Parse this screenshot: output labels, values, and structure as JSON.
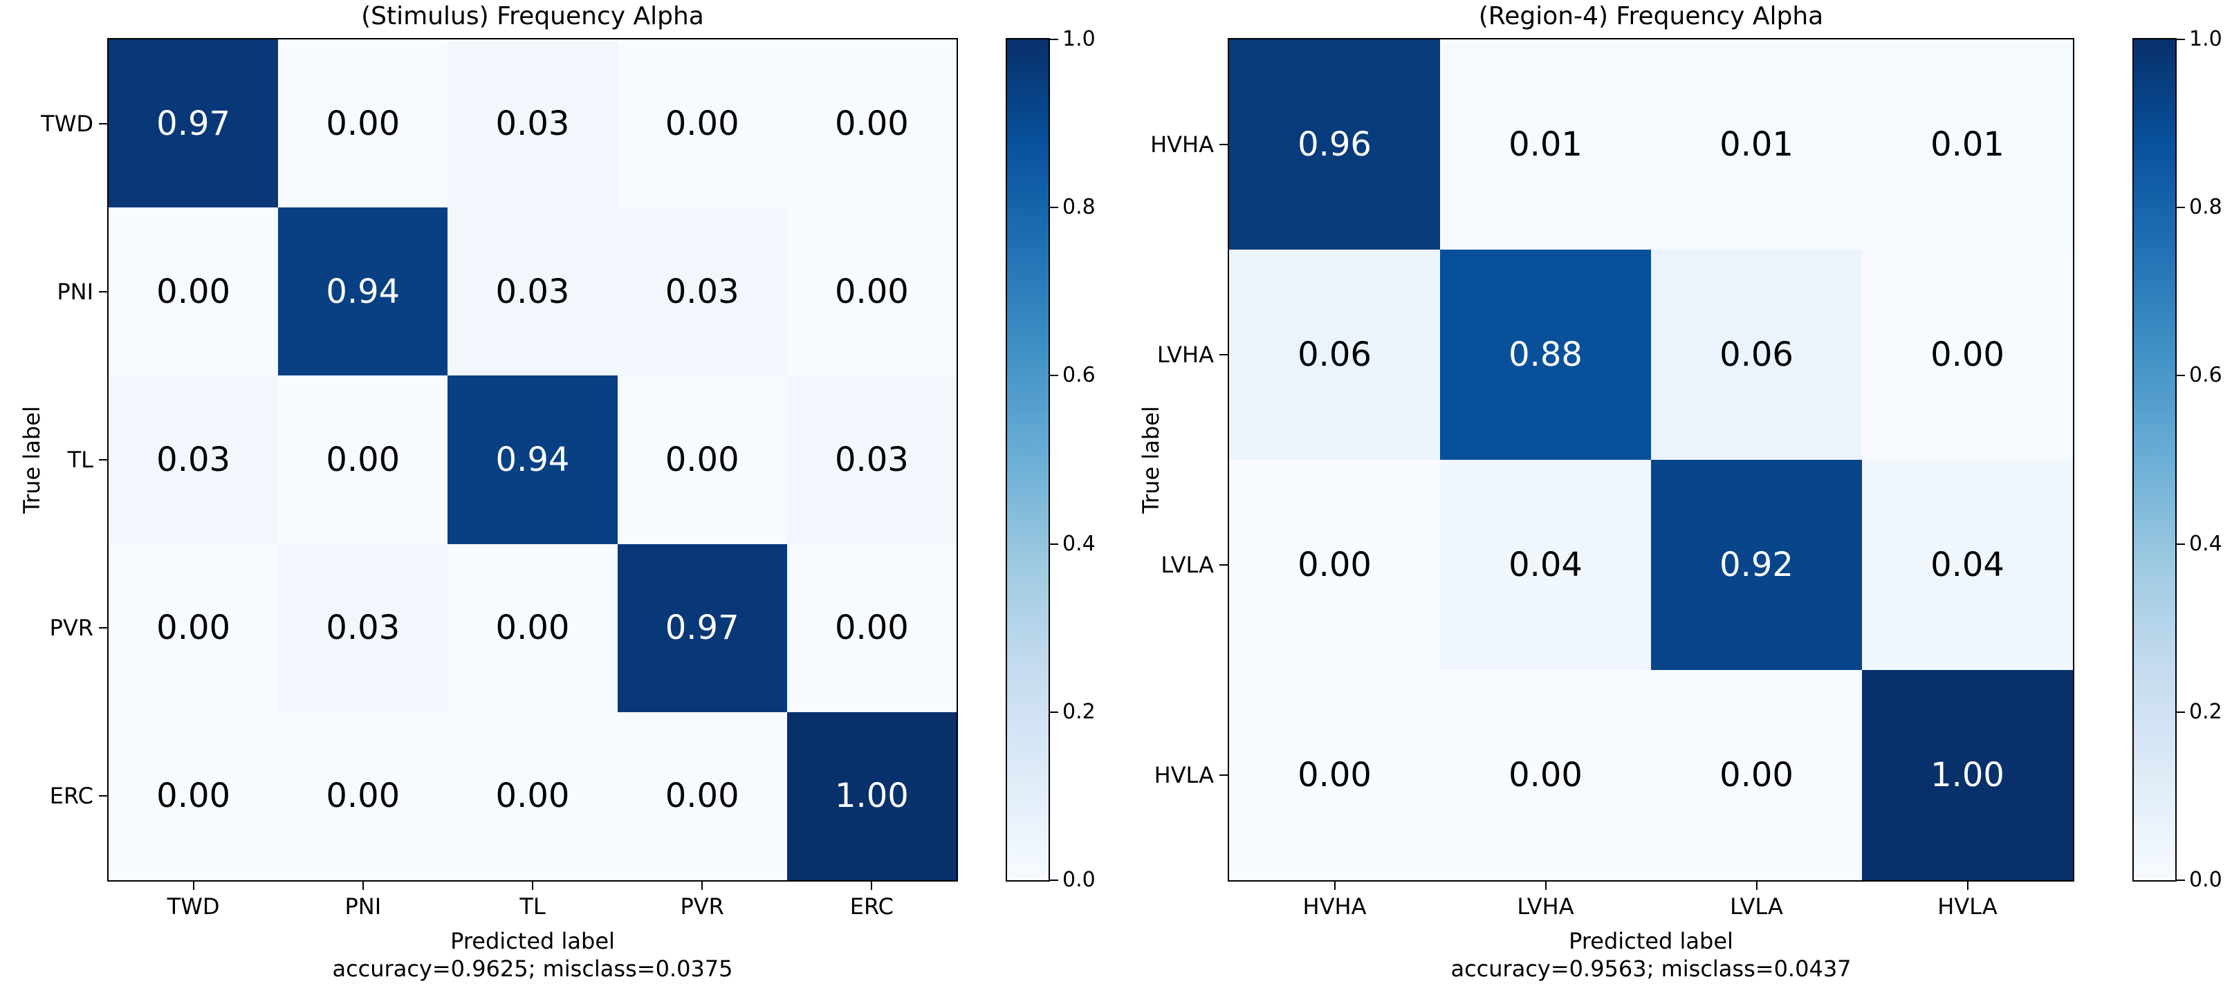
{
  "figure": {
    "background": "#ffffff",
    "text_color": "#000000",
    "cell_text_light": "#ffffff",
    "cell_text_dark": "#000000",
    "colormap": {
      "name": "Blues",
      "anchors": [
        [
          0.0,
          "#f7fbff"
        ],
        [
          0.125,
          "#deebf7"
        ],
        [
          0.25,
          "#c6dbef"
        ],
        [
          0.375,
          "#9ecae1"
        ],
        [
          0.5,
          "#6baed6"
        ],
        [
          0.625,
          "#4292c6"
        ],
        [
          0.75,
          "#2171b5"
        ],
        [
          0.875,
          "#08519c"
        ],
        [
          1.0,
          "#08306b"
        ]
      ]
    }
  },
  "chart_data": [
    {
      "type": "heatmap",
      "title": "(Stimulus) Frequency Alpha",
      "xlabel": "Predicted label",
      "ylabel": "True label",
      "footnote": "accuracy=0.9625; misclass=0.0375",
      "x_categories": [
        "TWD",
        "PNI",
        "TL",
        "PVR",
        "ERC"
      ],
      "y_categories": [
        "TWD",
        "PNI",
        "TL",
        "PVR",
        "ERC"
      ],
      "matrix": [
        [
          0.97,
          0.0,
          0.03,
          0.0,
          0.0
        ],
        [
          0.0,
          0.94,
          0.03,
          0.03,
          0.0
        ],
        [
          0.03,
          0.0,
          0.94,
          0.0,
          0.03
        ],
        [
          0.0,
          0.03,
          0.0,
          0.97,
          0.0
        ],
        [
          0.0,
          0.0,
          0.0,
          0.0,
          1.0
        ]
      ],
      "value_format_decimals": 2,
      "vmin": 0,
      "vmax": 1,
      "grid": false,
      "legend_position": "right-colorbar",
      "colorbar_ticks": [
        "1.0",
        "0.8",
        "0.6",
        "0.4",
        "0.2",
        "0.0"
      ]
    },
    {
      "type": "heatmap",
      "title": "(Region-4) Frequency Alpha",
      "xlabel": "Predicted label",
      "ylabel": "True label",
      "footnote": "accuracy=0.9563; misclass=0.0437",
      "x_categories": [
        "HVHA",
        "LVHA",
        "LVLA",
        "HVLA"
      ],
      "y_categories": [
        "HVHA",
        "LVHA",
        "LVLA",
        "HVLA"
      ],
      "matrix": [
        [
          0.96,
          0.01,
          0.01,
          0.01
        ],
        [
          0.06,
          0.88,
          0.06,
          0.0
        ],
        [
          0.0,
          0.04,
          0.92,
          0.04
        ],
        [
          0.0,
          0.0,
          0.0,
          1.0
        ]
      ],
      "value_format_decimals": 2,
      "vmin": 0,
      "vmax": 1,
      "grid": false,
      "legend_position": "right-colorbar",
      "colorbar_ticks": [
        "1.0",
        "0.8",
        "0.6",
        "0.4",
        "0.2",
        "0.0"
      ]
    }
  ]
}
